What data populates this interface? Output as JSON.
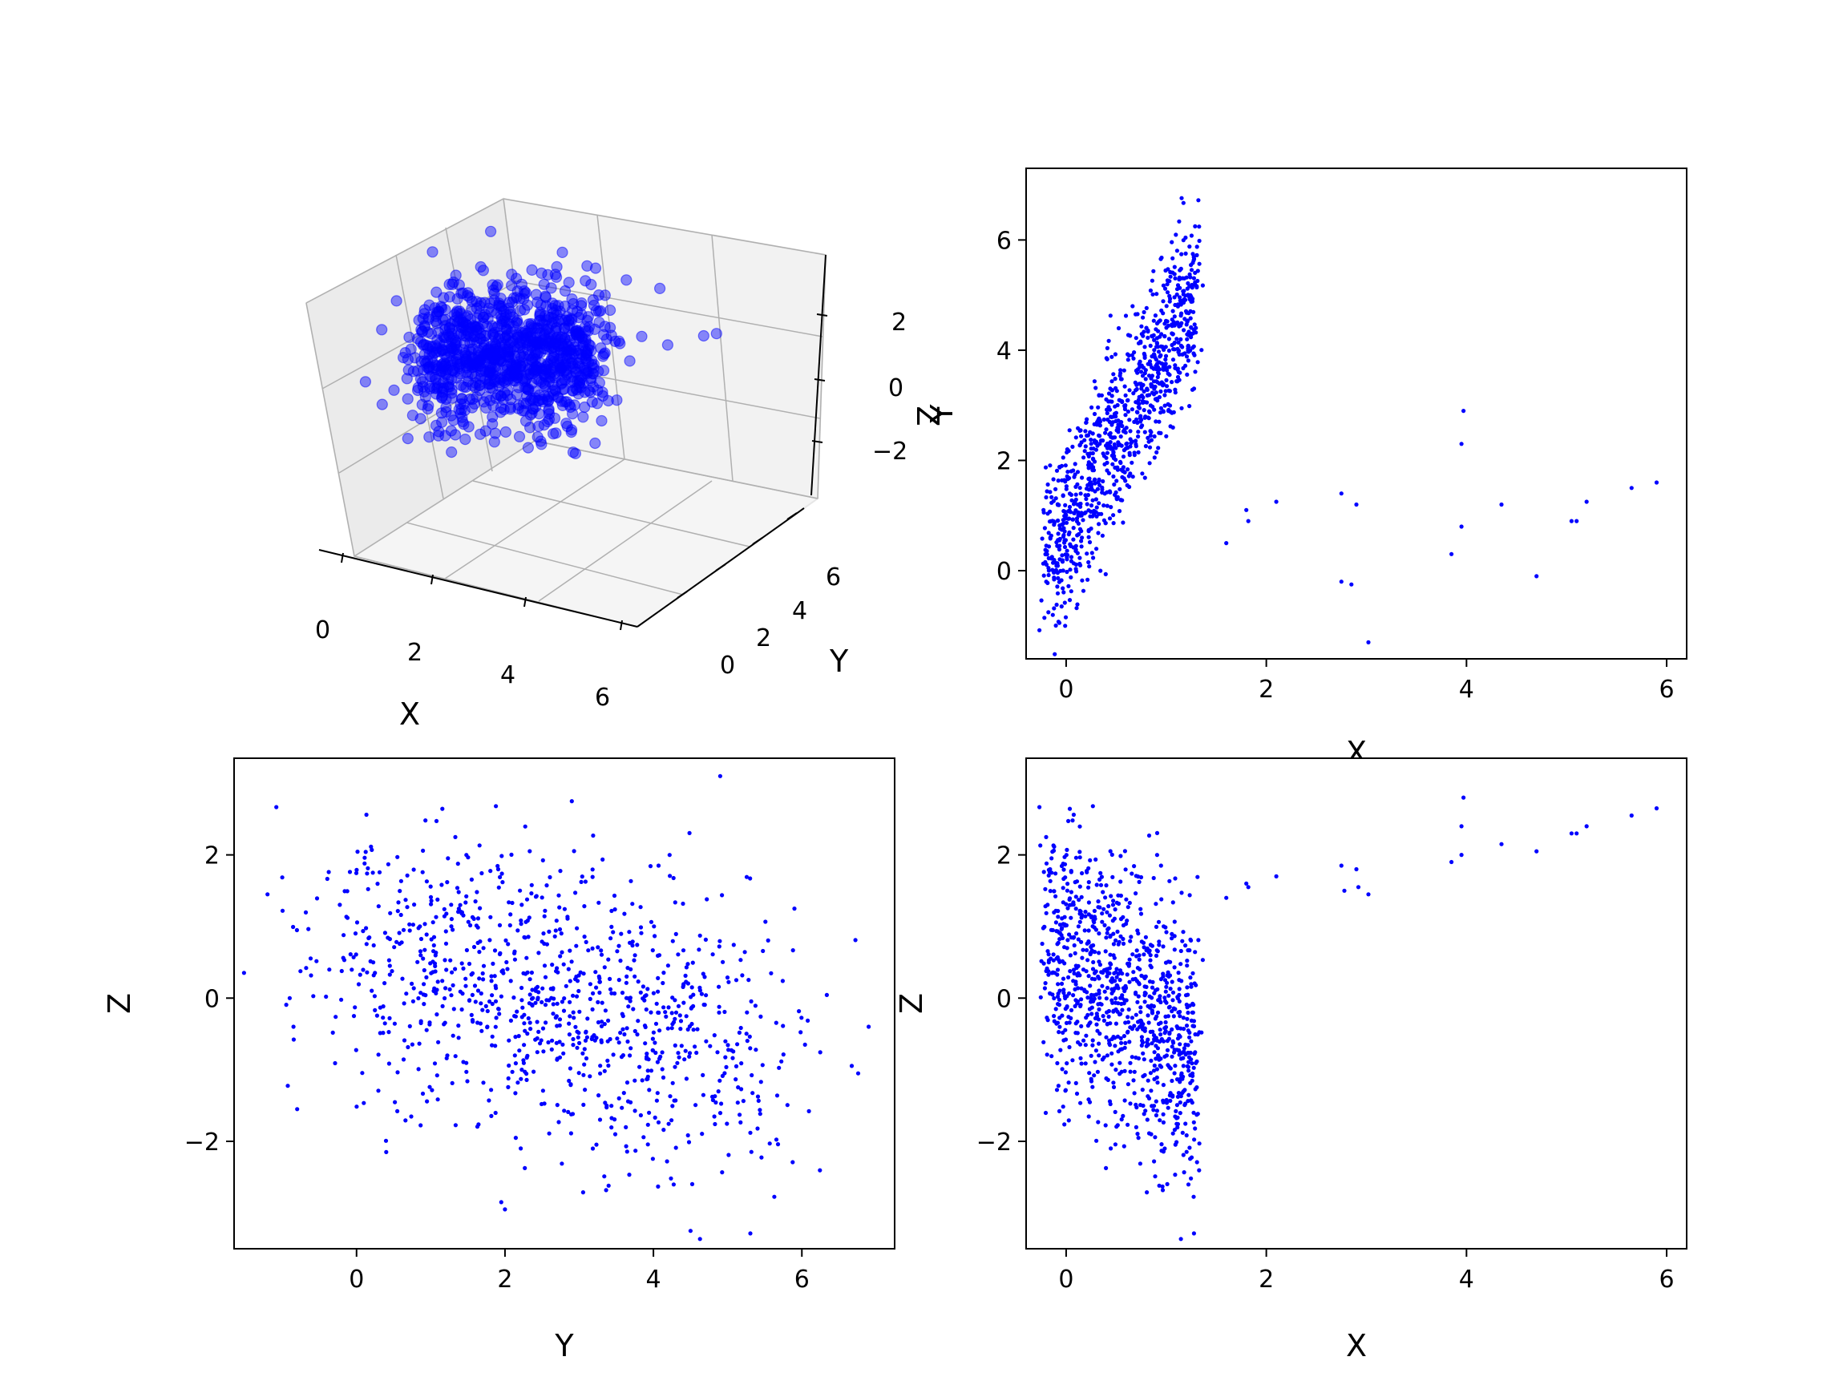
{
  "colors": {
    "points": "#0000ff",
    "axes": "#000000",
    "pane": "#f2f2f2",
    "pane_edge": "#e6e6e6",
    "grid": "#b0b0b0",
    "background": "#ffffff"
  },
  "chart_data": [
    {
      "type": "scatter",
      "subtype": "3d",
      "xlabel": "X",
      "ylabel": "Y",
      "zlabel": "Z",
      "xticks": [
        "0",
        "2",
        "4",
        "6"
      ],
      "yticks": [
        "0",
        "2",
        "4",
        "6"
      ],
      "zticks": [
        "−2",
        "0",
        "2"
      ],
      "xlim": [
        -0.3,
        6.3
      ],
      "ylim": [
        -1.5,
        7.2
      ],
      "zlim": [
        -3.5,
        3.3
      ],
      "grid": true,
      "outliers": [
        {
          "x": 1.6,
          "y": 0.5,
          "z": 1.4
        },
        {
          "x": 1.8,
          "y": 1.0,
          "z": 1.6
        },
        {
          "x": 2.1,
          "y": 1.2,
          "z": 1.7
        },
        {
          "x": 2.8,
          "y": -0.2,
          "z": 1.9
        },
        {
          "x": 2.9,
          "y": 1.2,
          "z": 1.8
        },
        {
          "x": 3.0,
          "y": -1.3,
          "z": 1.4
        },
        {
          "x": 3.9,
          "y": 0.3,
          "z": 1.9
        },
        {
          "x": 3.95,
          "y": 2.9,
          "z": 2.8
        },
        {
          "x": 4.35,
          "y": 1.2,
          "z": 2.2
        },
        {
          "x": 4.7,
          "y": -0.1,
          "z": 2.1
        },
        {
          "x": 5.1,
          "y": 0.9,
          "z": 2.3
        },
        {
          "x": 5.65,
          "y": 1.5,
          "z": 2.5
        },
        {
          "x": 5.9,
          "y": 1.6,
          "z": 2.6
        }
      ],
      "cluster": {
        "n": 1000,
        "x_range": [
          -0.2,
          1.3
        ],
        "y_center": 2.6,
        "y_spread": 1.4,
        "z_spread": 1.0
      }
    },
    {
      "type": "scatter",
      "xlabel": "X",
      "ylabel": "Y",
      "xticks": [
        "0",
        "2",
        "4",
        "6"
      ],
      "yticks": [
        "0",
        "2",
        "4",
        "6"
      ],
      "xlim": [
        -0.4,
        6.2
      ],
      "ylim": [
        -1.6,
        7.3
      ],
      "cluster": {
        "n": 1000,
        "x_range": [
          -0.2,
          1.3
        ],
        "y_center": 2.6,
        "y_spread": 1.4
      },
      "outliers": [
        {
          "x": 1.6,
          "y": 0.5
        },
        {
          "x": 1.8,
          "y": 1.1
        },
        {
          "x": 1.82,
          "y": 0.9
        },
        {
          "x": 2.1,
          "y": 1.25
        },
        {
          "x": 2.75,
          "y": 1.4
        },
        {
          "x": 2.9,
          "y": 1.2
        },
        {
          "x": 2.75,
          "y": -0.2
        },
        {
          "x": 2.85,
          "y": -0.25
        },
        {
          "x": 3.02,
          "y": -1.3
        },
        {
          "x": 3.85,
          "y": 0.3
        },
        {
          "x": 3.95,
          "y": 0.8
        },
        {
          "x": 3.95,
          "y": 2.3
        },
        {
          "x": 3.97,
          "y": 2.9
        },
        {
          "x": 4.35,
          "y": 1.2
        },
        {
          "x": 4.7,
          "y": -0.1
        },
        {
          "x": 5.05,
          "y": 0.9
        },
        {
          "x": 5.1,
          "y": 0.9
        },
        {
          "x": 5.2,
          "y": 1.25
        },
        {
          "x": 5.65,
          "y": 1.5
        },
        {
          "x": 5.9,
          "y": 1.6
        }
      ]
    },
    {
      "type": "scatter",
      "xlabel": "Y",
      "ylabel": "Z",
      "xticks": [
        "0",
        "2",
        "4",
        "6"
      ],
      "yticks": [
        "−2",
        "0",
        "2"
      ],
      "xlim": [
        -1.65,
        7.25
      ],
      "ylim": [
        -3.5,
        3.35
      ],
      "cluster": {
        "n": 1000,
        "x_center": 2.6,
        "x_spread": 1.4,
        "y_spread": 1.0
      },
      "outliers": [
        {
          "x": -1.2,
          "y": 1.45
        },
        {
          "x": -0.9,
          "y": 0.0
        },
        {
          "x": -0.85,
          "y": -0.4
        },
        {
          "x": -0.8,
          "y": -1.55
        },
        {
          "x": 0.4,
          "y": -2.15
        },
        {
          "x": 1.95,
          "y": -2.85
        },
        {
          "x": 2.0,
          "y": -2.95
        },
        {
          "x": 4.5,
          "y": -3.25
        },
        {
          "x": 4.9,
          "y": 3.1
        },
        {
          "x": 5.9,
          "y": 1.25
        },
        {
          "x": 6.9,
          "y": -0.4
        },
        {
          "x": 2.9,
          "y": 2.75
        }
      ]
    },
    {
      "type": "scatter",
      "xlabel": "X",
      "ylabel": "Z",
      "xticks": [
        "0",
        "2",
        "4",
        "6"
      ],
      "yticks": [
        "−2",
        "0",
        "2"
      ],
      "xlim": [
        -0.4,
        6.2
      ],
      "ylim": [
        -3.5,
        3.35
      ],
      "cluster": {
        "n": 1000,
        "x_range": [
          -0.2,
          1.3
        ],
        "y_spread": 1.0,
        "slope": -1.2
      },
      "outliers": [
        {
          "x": 1.6,
          "y": 1.4
        },
        {
          "x": 1.8,
          "y": 1.6
        },
        {
          "x": 1.82,
          "y": 1.55
        },
        {
          "x": 2.1,
          "y": 1.7
        },
        {
          "x": 2.75,
          "y": 1.85
        },
        {
          "x": 2.78,
          "y": 1.5
        },
        {
          "x": 2.9,
          "y": 1.8
        },
        {
          "x": 2.92,
          "y": 1.55
        },
        {
          "x": 3.02,
          "y": 1.45
        },
        {
          "x": 3.85,
          "y": 1.9
        },
        {
          "x": 3.95,
          "y": 2.0
        },
        {
          "x": 3.95,
          "y": 2.4
        },
        {
          "x": 3.97,
          "y": 2.8
        },
        {
          "x": 4.35,
          "y": 2.15
        },
        {
          "x": 4.7,
          "y": 2.05
        },
        {
          "x": 5.05,
          "y": 2.3
        },
        {
          "x": 5.1,
          "y": 2.3
        },
        {
          "x": 5.2,
          "y": 2.4
        },
        {
          "x": 5.65,
          "y": 2.55
        },
        {
          "x": 5.9,
          "y": 2.65
        }
      ]
    }
  ]
}
